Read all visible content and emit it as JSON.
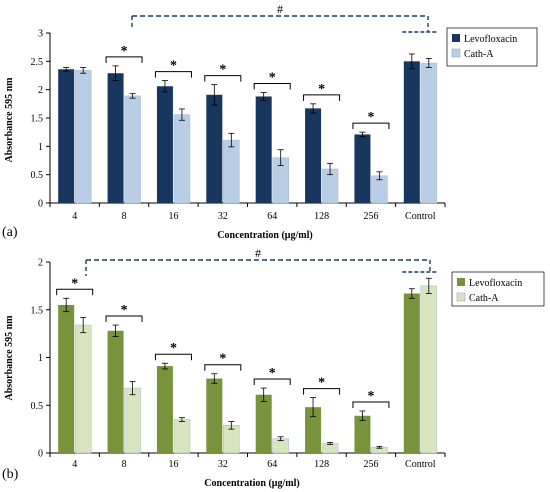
{
  "chart_data": [
    {
      "type": "bar",
      "panel_label": "(a)",
      "xlabel": "Concentration (μg/ml)",
      "ylabel": "Absorbance 595 nm",
      "categories": [
        "4",
        "8",
        "16",
        "32",
        "64",
        "128",
        "256",
        "Control"
      ],
      "ylim": [
        0,
        3
      ],
      "yticks": [
        "0",
        "0.5",
        "1",
        "1.5",
        "2",
        "2.5",
        "3"
      ],
      "grid": false,
      "legend_position": "top-right",
      "series": [
        {
          "name": "Levofloxacin",
          "color": "#17375e",
          "values": [
            2.36,
            2.29,
            2.06,
            1.91,
            1.88,
            1.67,
            1.21,
            2.5
          ],
          "errors": [
            0.03,
            0.13,
            0.1,
            0.18,
            0.07,
            0.08,
            0.04,
            0.13
          ]
        },
        {
          "name": "Cath-A",
          "color": "#b9cde5",
          "values": [
            2.34,
            1.89,
            1.56,
            1.11,
            0.8,
            0.6,
            0.48,
            2.47
          ],
          "errors": [
            0.05,
            0.04,
            0.1,
            0.12,
            0.14,
            0.1,
            0.07,
            0.08
          ]
        }
      ],
      "significance": {
        "pairwise_mark": "*",
        "pairwise_categories": [
          "8",
          "16",
          "32",
          "64",
          "128",
          "256"
        ],
        "overall_mark": "#",
        "overall_from": "8",
        "overall_to": "Control"
      }
    },
    {
      "type": "bar",
      "panel_label": "(b)",
      "xlabel": "Concentration (μg/ml)",
      "ylabel": "Absorbance 595 nm",
      "categories": [
        "4",
        "8",
        "16",
        "32",
        "64",
        "128",
        "256",
        "Control"
      ],
      "ylim": [
        0,
        2
      ],
      "yticks": [
        "0",
        "0.5",
        "1",
        "1.5",
        "2"
      ],
      "grid": false,
      "legend_position": "top-right",
      "series": [
        {
          "name": "Levofloxacin",
          "color": "#77933c",
          "values": [
            1.55,
            1.28,
            0.91,
            0.78,
            0.61,
            0.48,
            0.39,
            1.67
          ],
          "errors": [
            0.07,
            0.06,
            0.03,
            0.05,
            0.07,
            0.1,
            0.05,
            0.05
          ]
        },
        {
          "name": "Cath-A",
          "color": "#d7e4bd",
          "values": [
            1.34,
            0.68,
            0.35,
            0.29,
            0.15,
            0.1,
            0.06,
            1.75
          ],
          "errors": [
            0.08,
            0.07,
            0.02,
            0.04,
            0.02,
            0.01,
            0.01,
            0.08
          ]
        }
      ],
      "significance": {
        "pairwise_mark": "*",
        "pairwise_categories": [
          "4",
          "8",
          "16",
          "32",
          "64",
          "128",
          "256"
        ],
        "overall_mark": "#",
        "overall_from": "4",
        "overall_to": "Control"
      }
    }
  ]
}
